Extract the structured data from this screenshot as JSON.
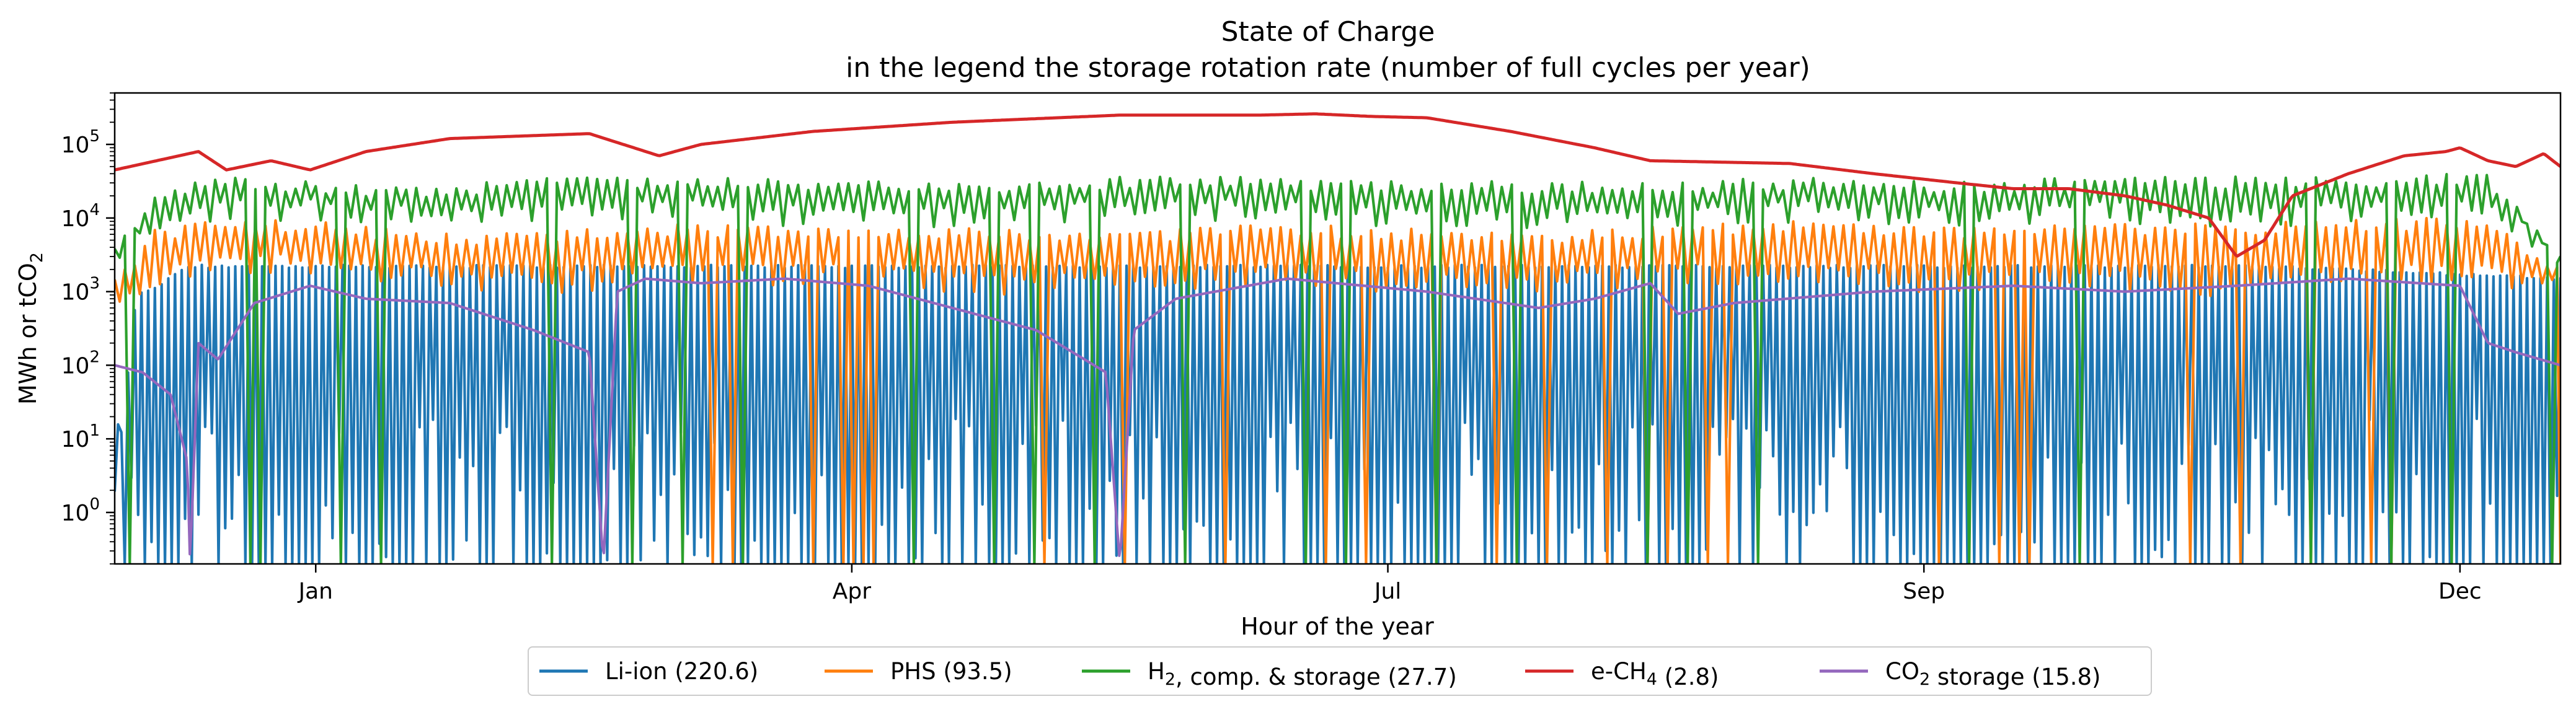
{
  "chart_data": {
    "type": "line",
    "title": "State of Charge",
    "subtitle": "in the legend the storage rotation rate (number of full cycles per year)",
    "xlabel": "Hour of the year",
    "ylabel": "MWh or tCO2",
    "ylabel_parts": {
      "pre": "MWh or tCO",
      "sub": "2"
    },
    "yscale": "log",
    "xlim": [
      0,
      8760
    ],
    "ylim": [
      0.2,
      500000
    ],
    "x_ticks": [
      {
        "label": "Jan",
        "x": 720
      },
      {
        "label": "Apr",
        "x": 2640
      },
      {
        "label": "Jul",
        "x": 4560
      },
      {
        "label": "Sep",
        "x": 6480
      },
      {
        "label": "Dec",
        "x": 8400
      }
    ],
    "y_ticks": [
      {
        "value": 1,
        "base": "10",
        "exp": "0"
      },
      {
        "value": 10,
        "base": "10",
        "exp": "1"
      },
      {
        "value": 100,
        "base": "10",
        "exp": "2"
      },
      {
        "value": 1000,
        "base": "10",
        "exp": "3"
      },
      {
        "value": 10000,
        "base": "10",
        "exp": "4"
      },
      {
        "value": 100000,
        "base": "10",
        "exp": "5"
      }
    ],
    "grid": false,
    "legend_placement": "bottom-center, below plot",
    "series": [
      {
        "name": "Li-ion (220.6)",
        "label_parts": [
          {
            "t": "Li-ion (220.6)"
          }
        ],
        "color": "#1f77b4",
        "style": "cycling",
        "x": [
          0,
          80,
          120,
          270,
          380,
          560,
          2000,
          2200,
          2600,
          3700,
          4400,
          5000,
          6000,
          7000,
          7700,
          8760
        ],
        "peak": [
          2,
          1000,
          1000,
          2200,
          2200,
          2200,
          2200,
          2200,
          2200,
          2200,
          2200,
          2200,
          2200,
          2200,
          2200,
          1500
        ],
        "trough": [
          0.2,
          0.2,
          0.2,
          0.2,
          0.2,
          0.2,
          0.2,
          0.2,
          0.2,
          0.2,
          0.2,
          0.2,
          0.2,
          0.2,
          0.2,
          0.2
        ]
      },
      {
        "name": "PHS (93.5)",
        "label_parts": [
          {
            "t": "PHS (93.5)"
          }
        ],
        "color": "#ff7f0e",
        "style": "cycling",
        "x": [
          0,
          150,
          400,
          720,
          1100,
          1500,
          2000,
          2600,
          3100,
          3600,
          4100,
          4600,
          5100,
          5600,
          6100,
          6600,
          7100,
          7500,
          8000,
          8500,
          8760
        ],
        "peak": [
          1500,
          7000,
          9000,
          9000,
          6000,
          6000,
          8000,
          7000,
          7000,
          6000,
          8000,
          7000,
          6000,
          8000,
          9000,
          7000,
          8000,
          8000,
          9000,
          10000,
          2000
        ],
        "trough": [
          1000,
          2000,
          3000,
          2500,
          2000,
          1500,
          2000,
          2000,
          1500,
          1500,
          2000,
          1500,
          1500,
          2000,
          2000,
          1500,
          2000,
          1000,
          2000,
          2000,
          1500
        ]
      },
      {
        "name": "H2, comp. & storage (27.7)",
        "label_parts": [
          {
            "t": "H"
          },
          {
            "t": "2",
            "sub": true
          },
          {
            "t": ", comp. & storage (27.7)"
          }
        ],
        "color": "#2ca02c",
        "style": "cycling",
        "x": [
          0,
          150,
          350,
          720,
          1100,
          1500,
          2000,
          2600,
          3100,
          3600,
          4100,
          4600,
          5100,
          5600,
          6100,
          6600,
          7100,
          7500,
          8000,
          8500,
          8760
        ],
        "peak": [
          5000,
          20000,
          35000,
          30000,
          25000,
          35000,
          35000,
          30000,
          30000,
          35000,
          35000,
          30000,
          30000,
          30000,
          35000,
          30000,
          35000,
          35000,
          35000,
          40000,
          3000
        ],
        "trough": [
          3000,
          10000,
          15000,
          15000,
          12000,
          15000,
          15000,
          12000,
          12000,
          15000,
          15000,
          12000,
          12000,
          12000,
          15000,
          12000,
          15000,
          10000,
          15000,
          15000,
          3000
        ]
      },
      {
        "name": "e-CH4 (2.8)",
        "label_parts": [
          {
            "t": "e-CH"
          },
          {
            "t": "4",
            "sub": true
          },
          {
            "t": " (2.8)"
          }
        ],
        "color": "#d62728",
        "style": "smooth",
        "x": [
          0,
          300,
          400,
          560,
          700,
          900,
          1200,
          1700,
          1950,
          2100,
          2500,
          3000,
          3600,
          3800,
          4100,
          4300,
          4400,
          4500,
          4700,
          5000,
          5300,
          5500,
          6000,
          6300,
          6600,
          6800,
          7000,
          7200,
          7350,
          7500,
          7600,
          7700,
          7800,
          8000,
          8200,
          8350,
          8400,
          8500,
          8600,
          8700,
          8760
        ],
        "y": [
          45000,
          80000,
          45000,
          60000,
          45000,
          80000,
          120000,
          140000,
          70000,
          100000,
          150000,
          200000,
          250000,
          250000,
          250000,
          260000,
          250000,
          240000,
          230000,
          150000,
          90000,
          60000,
          55000,
          40000,
          30000,
          25000,
          25000,
          20000,
          15000,
          10000,
          3000,
          5000,
          20000,
          40000,
          70000,
          80000,
          90000,
          60000,
          50000,
          75000,
          50000
        ]
      },
      {
        "name": "CO2 storage (15.8)",
        "label_parts": [
          {
            "t": "CO"
          },
          {
            "t": "2",
            "sub": true
          },
          {
            "t": " storage (15.8)"
          }
        ],
        "color": "#9467bd",
        "style": "smooth",
        "x": [
          0,
          100,
          200,
          260,
          270,
          300,
          370,
          500,
          700,
          900,
          1200,
          1500,
          1700,
          1750,
          1800,
          1900,
          2100,
          2400,
          2700,
          3000,
          3300,
          3550,
          3600,
          3650,
          3800,
          4200,
          4700,
          5100,
          5300,
          5500,
          5600,
          5800,
          6300,
          6800,
          7200,
          7600,
          8000,
          8400,
          8500,
          8600,
          8760
        ],
        "y": [
          100,
          80,
          40,
          5,
          0.2,
          200,
          120,
          700,
          1200,
          800,
          700,
          300,
          150,
          0.2,
          1000,
          1500,
          1300,
          1500,
          1200,
          600,
          300,
          80,
          0.2,
          300,
          800,
          1500,
          1000,
          600,
          800,
          1300,
          500,
          700,
          1000,
          1200,
          1000,
          1200,
          1500,
          1200,
          200,
          150,
          100
        ]
      }
    ]
  }
}
